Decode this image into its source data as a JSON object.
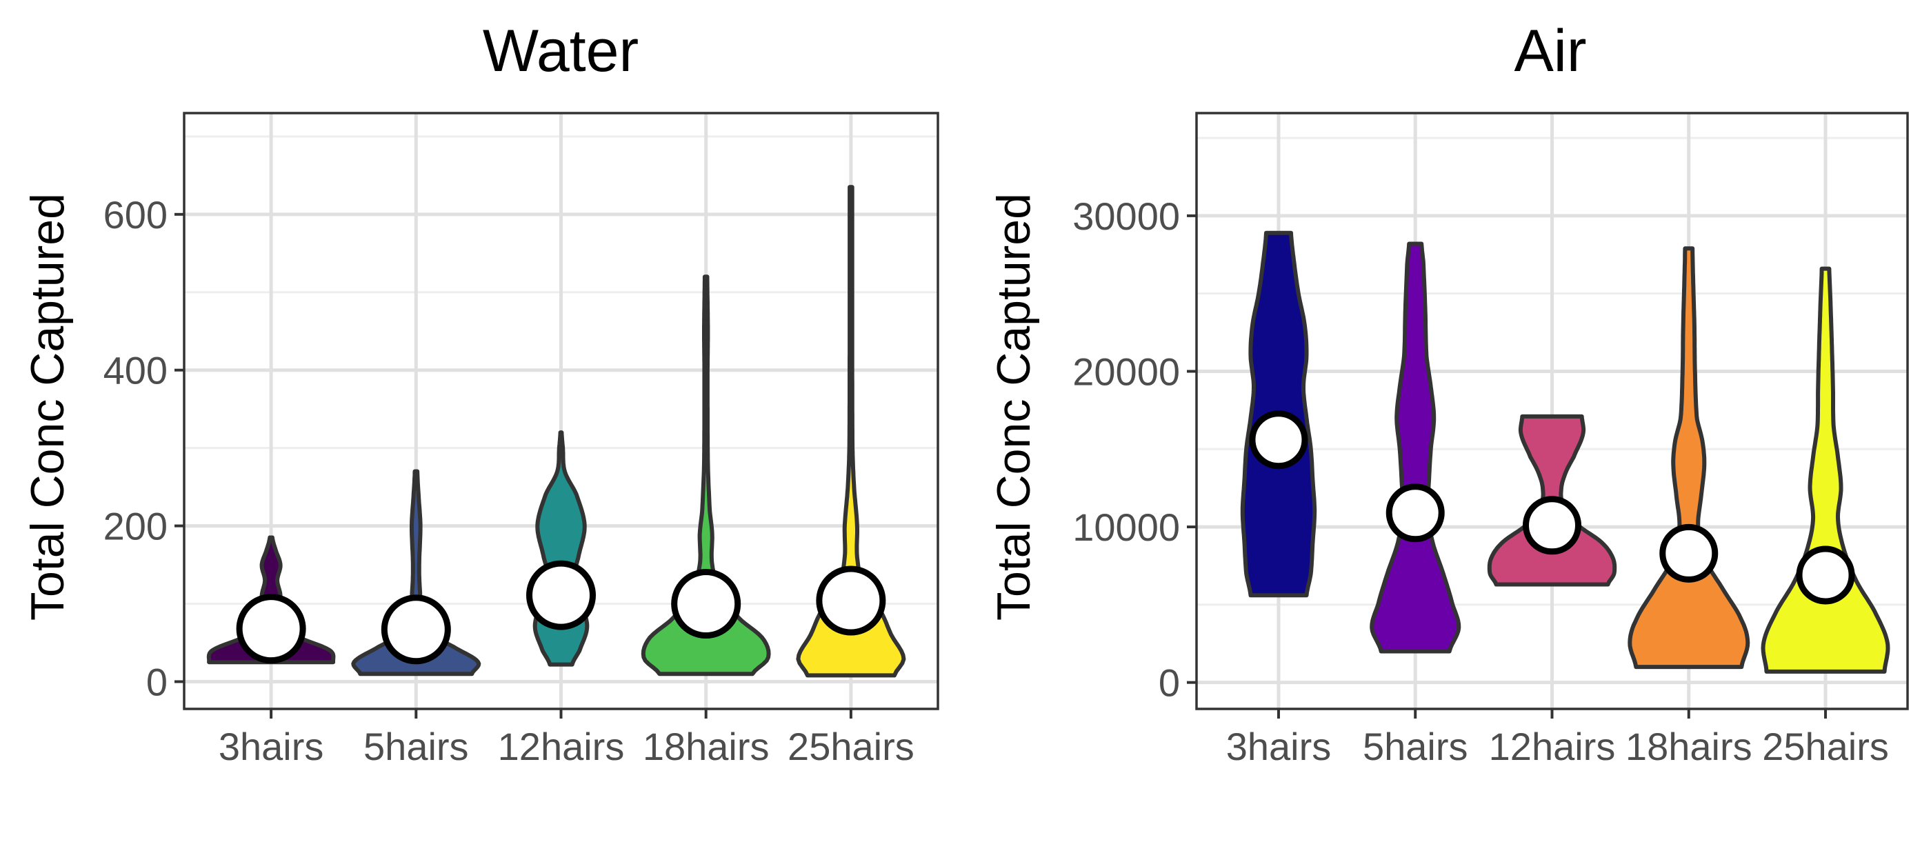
{
  "chart_data": [
    {
      "type": "violin",
      "title": "Water",
      "xlabel": "",
      "ylabel": "Total Conc Captured",
      "categories": [
        "3hairs",
        "5hairs",
        "12hairs",
        "18hairs",
        "25hairs"
      ],
      "ylim": [
        -35,
        730
      ],
      "yticks": [
        0,
        200,
        400,
        600
      ],
      "yticklabels": [
        "0",
        "200",
        "400",
        "600"
      ],
      "grid": true,
      "means": [
        68,
        67,
        111,
        100,
        104
      ],
      "colors": [
        "#440154",
        "#3b528b",
        "#21908d",
        "#4cc150",
        "#fde725"
      ],
      "distributions": [
        {
          "min": 25,
          "max": 185,
          "profile": [
            [
              25,
              1.0
            ],
            [
              40,
              0.95
            ],
            [
              55,
              0.5
            ],
            [
              70,
              0.12
            ],
            [
              90,
              0.1
            ],
            [
              110,
              0.15
            ],
            [
              130,
              0.1
            ],
            [
              150,
              0.15
            ],
            [
              170,
              0.07
            ],
            [
              185,
              0.02
            ]
          ]
        },
        {
          "min": 10,
          "max": 270,
          "profile": [
            [
              10,
              0.9
            ],
            [
              25,
              1.0
            ],
            [
              45,
              0.6
            ],
            [
              60,
              0.25
            ],
            [
              90,
              0.1
            ],
            [
              120,
              0.06
            ],
            [
              150,
              0.05
            ],
            [
              200,
              0.07
            ],
            [
              240,
              0.04
            ],
            [
              270,
              0.02
            ]
          ]
        },
        {
          "min": 22,
          "max": 320,
          "profile": [
            [
              22,
              0.18
            ],
            [
              40,
              0.3
            ],
            [
              70,
              0.42
            ],
            [
              100,
              0.33
            ],
            [
              130,
              0.2
            ],
            [
              160,
              0.28
            ],
            [
              200,
              0.38
            ],
            [
              240,
              0.25
            ],
            [
              270,
              0.06
            ],
            [
              300,
              0.03
            ],
            [
              320,
              0.01
            ]
          ]
        },
        {
          "min": 10,
          "max": 520,
          "profile": [
            [
              10,
              0.75
            ],
            [
              30,
              1.0
            ],
            [
              55,
              0.92
            ],
            [
              80,
              0.55
            ],
            [
              110,
              0.25
            ],
            [
              150,
              0.1
            ],
            [
              190,
              0.1
            ],
            [
              220,
              0.06
            ],
            [
              280,
              0.03
            ],
            [
              400,
              0.025
            ],
            [
              450,
              0.03
            ],
            [
              520,
              0.02
            ]
          ]
        },
        {
          "min": 8,
          "max": 635,
          "profile": [
            [
              8,
              0.7
            ],
            [
              30,
              0.85
            ],
            [
              60,
              0.65
            ],
            [
              90,
              0.48
            ],
            [
              120,
              0.2
            ],
            [
              160,
              0.1
            ],
            [
              200,
              0.1
            ],
            [
              250,
              0.05
            ],
            [
              300,
              0.025
            ],
            [
              450,
              0.02
            ],
            [
              635,
              0.02
            ]
          ]
        }
      ]
    },
    {
      "type": "violin",
      "title": "Air",
      "xlabel": "",
      "ylabel": "Total Conc Captured",
      "categories": [
        "3hairs",
        "5hairs",
        "12hairs",
        "18hairs",
        "25hairs"
      ],
      "ylim": [
        -1700,
        36600
      ],
      "yticks": [
        0,
        10000,
        20000,
        30000
      ],
      "yticklabels": [
        "0",
        "10000",
        "20000",
        "30000"
      ],
      "grid": true,
      "means": [
        15600,
        10900,
        10100,
        8300,
        6900
      ],
      "colors": [
        "#0d0887",
        "#6a00a8",
        "#cb4678",
        "#f48c34",
        "#f0f921"
      ],
      "distributions": [
        {
          "min": 5600,
          "max": 28900,
          "profile": [
            [
              5600,
              0.45
            ],
            [
              7000,
              0.52
            ],
            [
              9000,
              0.55
            ],
            [
              11000,
              0.58
            ],
            [
              13000,
              0.55
            ],
            [
              15000,
              0.52
            ],
            [
              17000,
              0.45
            ],
            [
              19000,
              0.4
            ],
            [
              21000,
              0.45
            ],
            [
              23000,
              0.42
            ],
            [
              25000,
              0.32
            ],
            [
              27000,
              0.25
            ],
            [
              28900,
              0.2
            ]
          ]
        },
        {
          "min": 2000,
          "max": 28200,
          "profile": [
            [
              2000,
              0.55
            ],
            [
              3500,
              0.7
            ],
            [
              5000,
              0.6
            ],
            [
              7000,
              0.45
            ],
            [
              9000,
              0.28
            ],
            [
              11000,
              0.2
            ],
            [
              13000,
              0.22
            ],
            [
              15000,
              0.25
            ],
            [
              17000,
              0.3
            ],
            [
              19000,
              0.25
            ],
            [
              21000,
              0.18
            ],
            [
              24000,
              0.16
            ],
            [
              27000,
              0.13
            ],
            [
              28200,
              0.1
            ]
          ]
        },
        {
          "min": 6300,
          "max": 17100,
          "profile": [
            [
              6300,
              0.9
            ],
            [
              7000,
              1.0
            ],
            [
              8000,
              0.98
            ],
            [
              9000,
              0.8
            ],
            [
              10000,
              0.45
            ],
            [
              11500,
              0.18
            ],
            [
              12500,
              0.15
            ],
            [
              13500,
              0.22
            ],
            [
              14500,
              0.35
            ],
            [
              16000,
              0.5
            ],
            [
              17100,
              0.48
            ]
          ]
        },
        {
          "min": 1000,
          "max": 27900,
          "profile": [
            [
              1000,
              0.85
            ],
            [
              2500,
              0.95
            ],
            [
              4000,
              0.85
            ],
            [
              6000,
              0.55
            ],
            [
              8000,
              0.25
            ],
            [
              10000,
              0.15
            ],
            [
              12000,
              0.2
            ],
            [
              14000,
              0.25
            ],
            [
              15500,
              0.22
            ],
            [
              17000,
              0.13
            ],
            [
              20000,
              0.1
            ],
            [
              23000,
              0.09
            ],
            [
              26000,
              0.07
            ],
            [
              27900,
              0.06
            ]
          ]
        },
        {
          "min": 700,
          "max": 26600,
          "profile": [
            [
              700,
              0.95
            ],
            [
              2500,
              1.0
            ],
            [
              4500,
              0.8
            ],
            [
              6500,
              0.5
            ],
            [
              8500,
              0.3
            ],
            [
              10500,
              0.2
            ],
            [
              12500,
              0.25
            ],
            [
              14500,
              0.2
            ],
            [
              16500,
              0.13
            ],
            [
              19000,
              0.12
            ],
            [
              22000,
              0.1
            ],
            [
              24500,
              0.08
            ],
            [
              26600,
              0.06
            ]
          ]
        }
      ]
    }
  ]
}
